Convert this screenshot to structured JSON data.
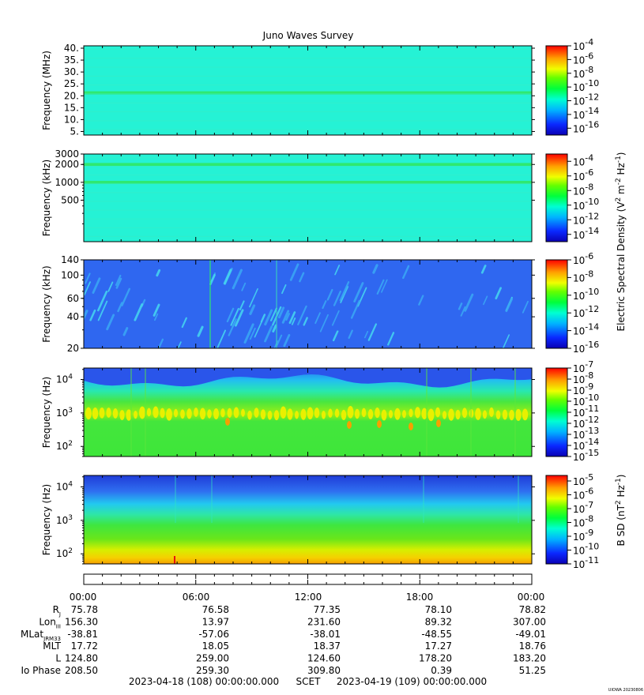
{
  "title": "Juno Waves Survey",
  "credit": "UIOWA 20230806",
  "colors": {
    "cyan": "#25f2d5",
    "band_green": "#2fe870",
    "blue_bg": "#2f67f0",
    "blue_deep": "#1f3cd8",
    "green": "#3ee63a",
    "yellow": "#e9f000",
    "orange": "#f5a000",
    "red": "#e8140c"
  },
  "colorbar_groups": [
    {
      "label": "Electric Spectral Density (V",
      "sup1": "2",
      "mid": " m",
      "sup2": "-2",
      "mid2": " Hz",
      "sup3": "-1",
      "end": ")"
    },
    {
      "label": "B SD (nT",
      "sup1": "2",
      "mid": " Hz",
      "sup2": "-1",
      "mid2": "",
      "sup3": "",
      "end": ")"
    }
  ],
  "chart_data": [
    {
      "type": "heatmap",
      "name": "panel-1",
      "ylabel": "Frequency (MHz)",
      "yscale": "linear",
      "ylim": [
        3.5,
        41
      ],
      "yticks": [
        {
          "v": 5,
          "label": "5."
        },
        {
          "v": 10,
          "label": "10."
        },
        {
          "v": 15,
          "label": "15."
        },
        {
          "v": 20,
          "label": "20."
        },
        {
          "v": 25,
          "label": "25."
        },
        {
          "v": 30,
          "label": "30."
        },
        {
          "v": 35,
          "label": "35."
        },
        {
          "v": 40,
          "label": "40."
        }
      ],
      "bands": [
        {
          "center": 21.2,
          "width": 1.4
        }
      ],
      "colorbar": {
        "min_exp": -17,
        "max_exp": -4,
        "tick_exps": [
          -4,
          -6,
          -8,
          -10,
          -12,
          -14,
          -16
        ]
      }
    },
    {
      "type": "heatmap",
      "name": "panel-2",
      "ylabel": "Frequency (kHz)",
      "yscale": "log",
      "ylim": [
        100,
        3000
      ],
      "yticks": [
        {
          "v": 500,
          "label": "500"
        },
        {
          "v": 1000,
          "label": "1000"
        },
        {
          "v": 2000,
          "label": "2000"
        },
        {
          "v": 3000,
          "label": "3000"
        }
      ],
      "bands": [
        {
          "center": 2000,
          "width": 0.025
        },
        {
          "center": 1000,
          "width": 0.025
        }
      ],
      "colorbar": {
        "min_exp": -15,
        "max_exp": -3,
        "tick_exps": [
          -4,
          -6,
          -8,
          -10,
          -12,
          -14
        ]
      }
    },
    {
      "type": "heatmap",
      "name": "panel-3",
      "ylabel": "Frequency (kHz)",
      "yscale": "log",
      "ylim": [
        20,
        140
      ],
      "yticks": [
        {
          "v": 20,
          "label": "20"
        },
        {
          "v": 40,
          "label": "40"
        },
        {
          "v": 60,
          "label": "60"
        },
        {
          "v": 100,
          "label": "100"
        },
        {
          "v": 140,
          "label": "140"
        }
      ],
      "colorbar": {
        "min_exp": -16,
        "max_exp": -6,
        "tick_exps": [
          -6,
          -8,
          -10,
          -12,
          -14,
          -16
        ]
      }
    },
    {
      "type": "heatmap",
      "name": "panel-4",
      "ylabel": "Frequency (Hz)",
      "yscale": "log",
      "ylim": [
        50,
        22000
      ],
      "yticks": [
        {
          "v": 100,
          "label": "10",
          "sup": "2"
        },
        {
          "v": 1000,
          "label": "10",
          "sup": "3"
        },
        {
          "v": 10000,
          "label": "10",
          "sup": "4"
        }
      ],
      "colorbar": {
        "min_exp": -15,
        "max_exp": -7,
        "tick_exps": [
          -7,
          -8,
          -9,
          -10,
          -11,
          -12,
          -13,
          -14,
          -15
        ]
      }
    },
    {
      "type": "heatmap",
      "name": "panel-5",
      "ylabel": "Frequency (Hz)",
      "yscale": "log",
      "ylim": [
        50,
        22000
      ],
      "yticks": [
        {
          "v": 100,
          "label": "10",
          "sup": "2"
        },
        {
          "v": 1000,
          "label": "10",
          "sup": "3"
        },
        {
          "v": 10000,
          "label": "10",
          "sup": "4"
        }
      ],
      "colorbar": {
        "min_exp": -11,
        "max_exp": -4.6,
        "tick_exps": [
          -5,
          -6,
          -7,
          -8,
          -9,
          -10,
          -11
        ]
      }
    }
  ],
  "time_axis": {
    "tick_labels": [
      "00:00",
      "06:00",
      "12:00",
      "18:00",
      "00:00"
    ],
    "minor_per_major": 6
  },
  "ephemeris": [
    {
      "label": "R",
      "sub": "J",
      "values": [
        "75.78",
        "76.58",
        "77.35",
        "78.10",
        "78.82"
      ]
    },
    {
      "label": "Lon",
      "sub": "III",
      "values": [
        "156.30",
        "13.97",
        "231.60",
        "89.32",
        "307.00"
      ]
    },
    {
      "label": "MLat",
      "sub": "JRM33",
      "values": [
        "-38.81",
        "-57.06",
        "-38.01",
        "-48.55",
        "-49.01"
      ]
    },
    {
      "label": "MLT",
      "sub": "",
      "values": [
        "17.72",
        "18.05",
        "18.37",
        "17.27",
        "18.76"
      ]
    },
    {
      "label": "L",
      "sub": "",
      "values": [
        "124.80",
        "259.00",
        "124.60",
        "178.20",
        "183.20"
      ]
    },
    {
      "label": "Io Phase",
      "sub": "",
      "values": [
        "208.50",
        "259.30",
        "309.80",
        "0.39",
        "51.25"
      ]
    }
  ],
  "footer": {
    "start": "2023-04-18 (108) 00:00:00.000",
    "scet": "SCET",
    "end": "2023-04-19 (109) 00:00:00.000"
  }
}
